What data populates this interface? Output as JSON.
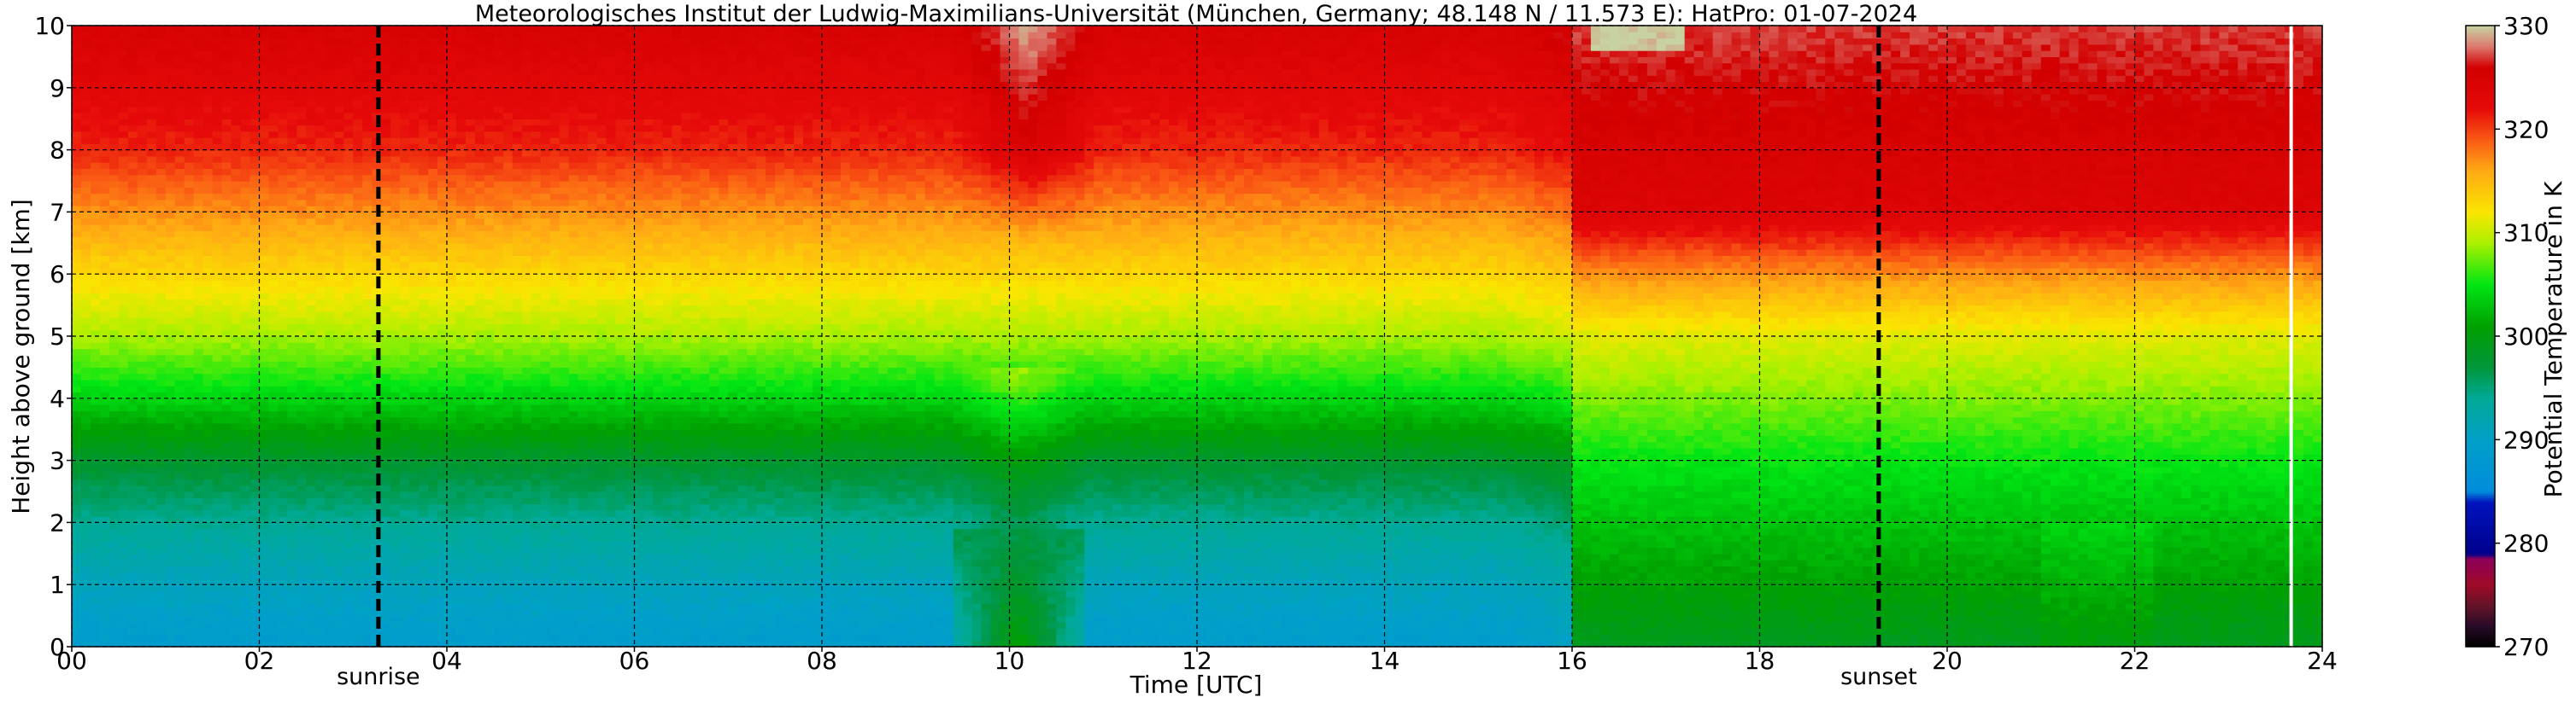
{
  "chart_data": {
    "type": "heatmap",
    "title": "Meteorologisches Institut der Ludwig-Maximilians-Universität (München, Germany; 48.148 N / 11.573 E):    HatPro: 01-07-2024",
    "xlabel": "Time [UTC]",
    "ylabel": "Height above ground [km]",
    "x_range": [
      0,
      24
    ],
    "y_range": [
      0,
      10
    ],
    "x_ticks": [
      "00",
      "02",
      "04",
      "06",
      "08",
      "10",
      "12",
      "14",
      "16",
      "18",
      "20",
      "22",
      "24"
    ],
    "y_ticks": [
      "0",
      "1",
      "2",
      "3",
      "4",
      "5",
      "6",
      "7",
      "8",
      "9",
      "10"
    ],
    "grid": true,
    "colorbar": {
      "label": "Potential Temperature in K",
      "range": [
        270,
        330
      ],
      "ticks": [
        "270",
        "280",
        "290",
        "300",
        "310",
        "320",
        "330"
      ]
    },
    "markers": [
      {
        "label": "sunrise",
        "time": 3.27
      },
      {
        "label": "sunset",
        "time": 19.27
      }
    ],
    "missing_data_time": 23.65,
    "profiles": {
      "height_km": [
        0,
        1,
        2,
        3,
        4,
        5,
        6,
        7,
        8,
        9,
        10
      ],
      "pre_frontal": [
        289,
        291,
        294,
        298,
        304,
        309,
        313,
        317,
        321,
        323,
        325
      ],
      "post_frontal": [
        299,
        301,
        303,
        305,
        308,
        311,
        317,
        324,
        325,
        326,
        327
      ]
    }
  }
}
